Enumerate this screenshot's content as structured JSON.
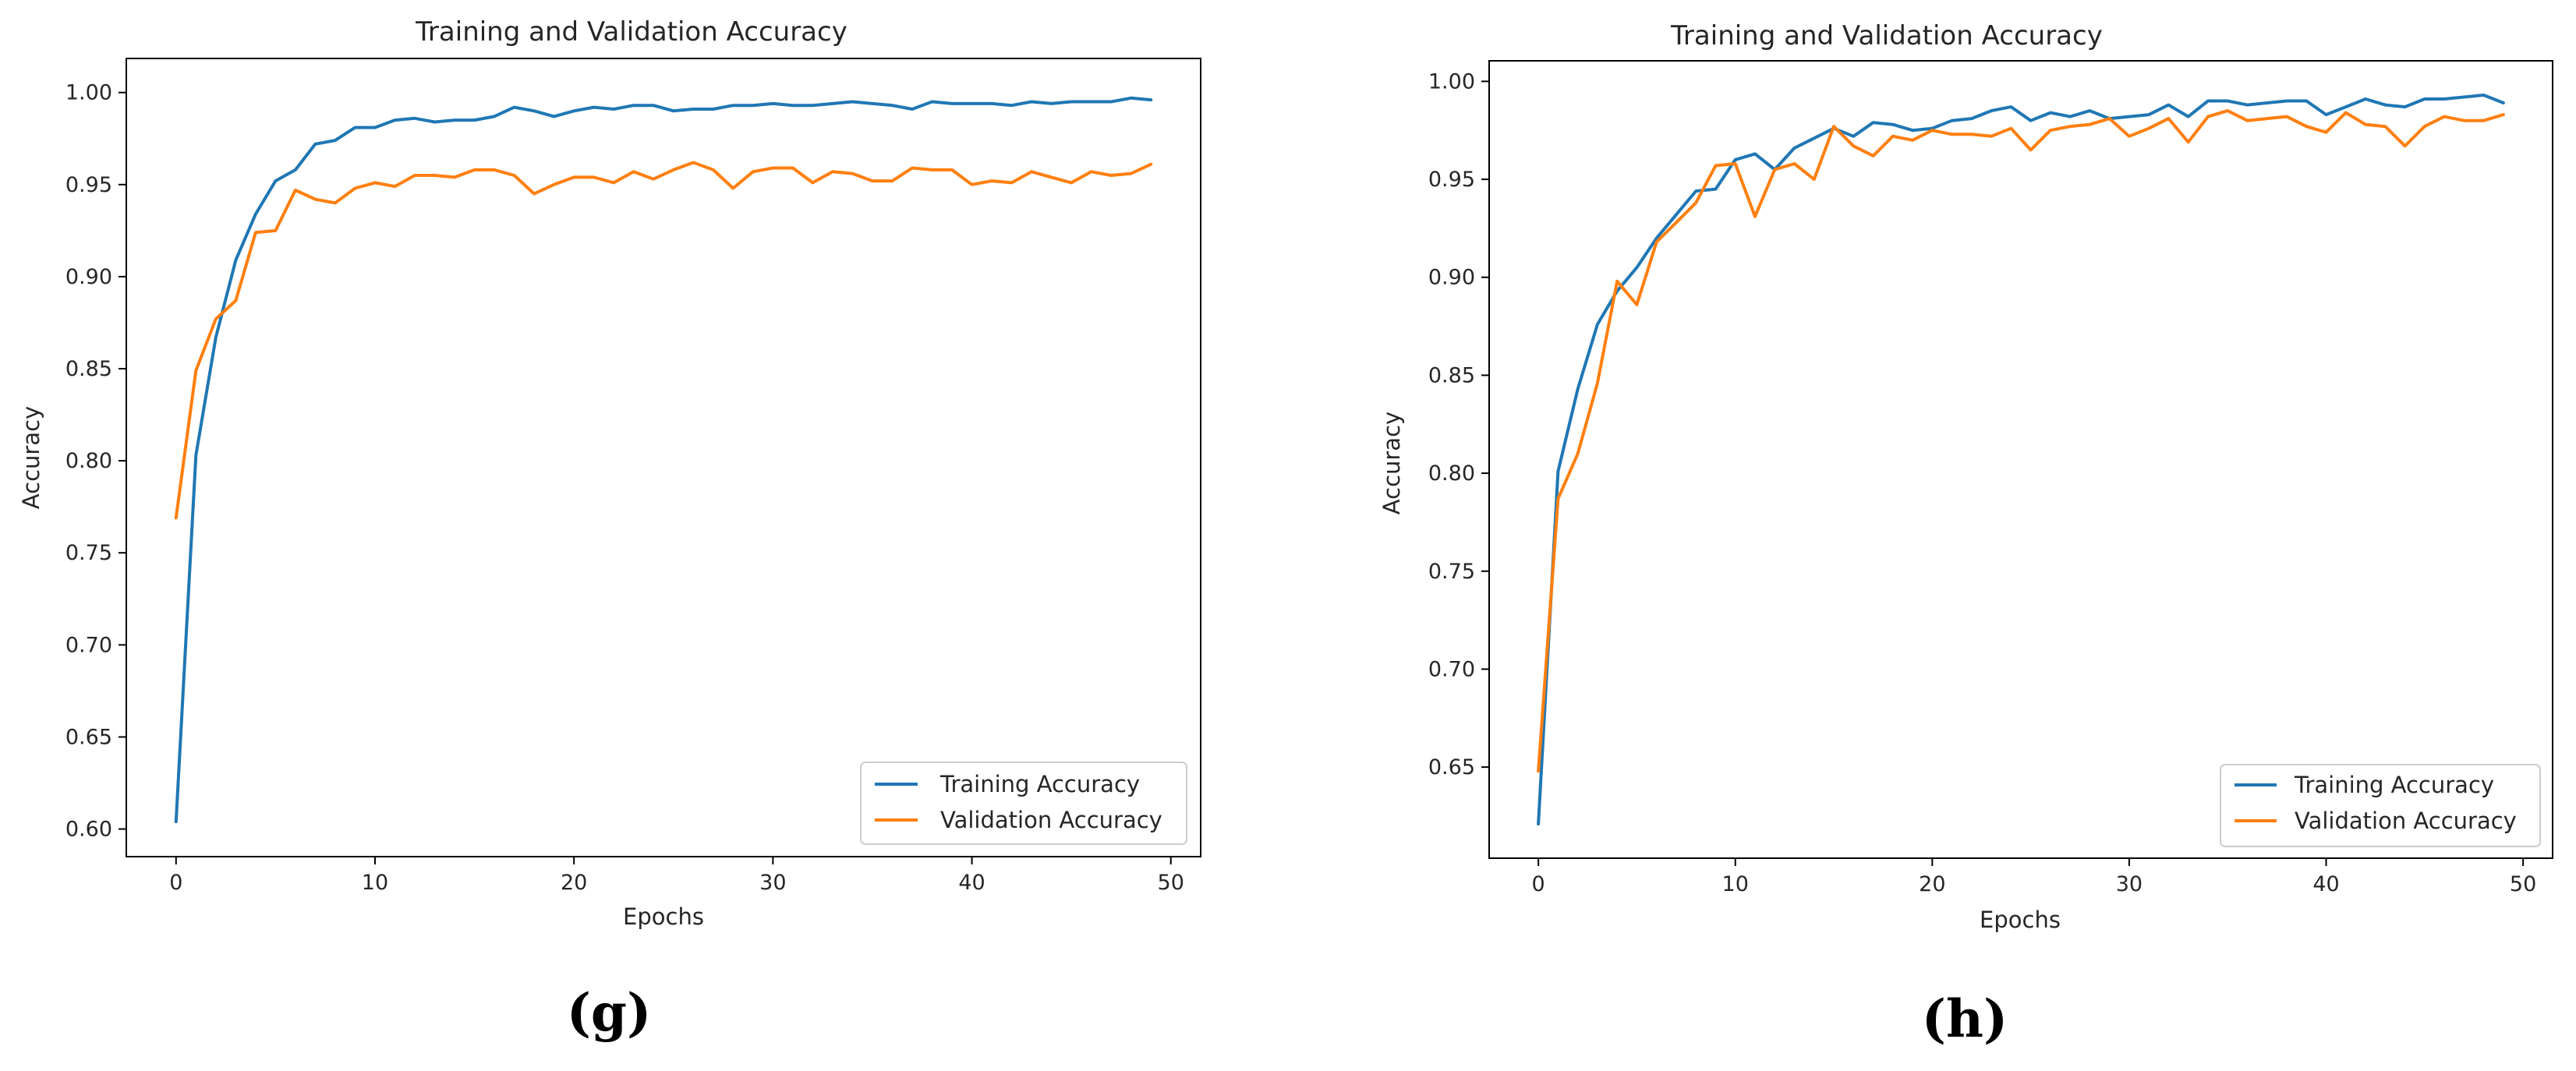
{
  "colors": {
    "training": "#1f77b4",
    "validation": "#ff7f0e",
    "axes": "#000000",
    "text": "#262626"
  },
  "chart_data": [
    {
      "type": "line",
      "panel_label": "(g)",
      "title": "Training and Validation Accuracy",
      "xlabel": "Epochs",
      "ylabel": "Accuracy",
      "xlim": [
        -2.5,
        51.5
      ],
      "ylim": [
        0.585,
        1.0185
      ],
      "xticks": [
        0,
        10,
        20,
        30,
        40,
        50
      ],
      "xtick_labels": [
        "0",
        "10",
        "20",
        "30",
        "40",
        "50"
      ],
      "yticks": [
        0.6,
        0.65,
        0.7,
        0.75,
        0.8,
        0.85,
        0.9,
        0.95,
        1.0
      ],
      "ytick_labels": [
        "0.60",
        "0.65",
        "0.70",
        "0.75",
        "0.80",
        "0.85",
        "0.90",
        "0.95",
        "1.00"
      ],
      "grid": false,
      "legend_position": "lower-right",
      "x": [
        0,
        1,
        2,
        3,
        4,
        5,
        6,
        7,
        8,
        9,
        10,
        11,
        12,
        13,
        14,
        15,
        16,
        17,
        18,
        19,
        20,
        21,
        22,
        23,
        24,
        25,
        26,
        27,
        28,
        29,
        30,
        31,
        32,
        33,
        34,
        35,
        36,
        37,
        38,
        39,
        40,
        41,
        42,
        43,
        44,
        45,
        46,
        47,
        48,
        49
      ],
      "series": [
        {
          "name": "Training Accuracy",
          "values": [
            0.604,
            0.803,
            0.867,
            0.909,
            0.934,
            0.952,
            0.958,
            0.972,
            0.974,
            0.981,
            0.981,
            0.985,
            0.986,
            0.984,
            0.985,
            0.985,
            0.987,
            0.992,
            0.99,
            0.987,
            0.99,
            0.992,
            0.991,
            0.993,
            0.993,
            0.99,
            0.991,
            0.991,
            0.993,
            0.993,
            0.994,
            0.993,
            0.993,
            0.994,
            0.995,
            0.994,
            0.993,
            0.991,
            0.995,
            0.994,
            0.994,
            0.994,
            0.993,
            0.995,
            0.994,
            0.995,
            0.995,
            0.995,
            0.997,
            0.996
          ]
        },
        {
          "name": "Validation Accuracy",
          "values": [
            0.769,
            0.849,
            0.877,
            0.887,
            0.924,
            0.925,
            0.947,
            0.942,
            0.94,
            0.948,
            0.951,
            0.949,
            0.955,
            0.955,
            0.954,
            0.958,
            0.958,
            0.955,
            0.945,
            0.95,
            0.954,
            0.954,
            0.951,
            0.957,
            0.953,
            0.958,
            0.962,
            0.958,
            0.948,
            0.957,
            0.959,
            0.959,
            0.951,
            0.957,
            0.956,
            0.952,
            0.952,
            0.959,
            0.958,
            0.958,
            0.95,
            0.952,
            0.951,
            0.957,
            0.954,
            0.951,
            0.957,
            0.955,
            0.956,
            0.961
          ]
        }
      ]
    },
    {
      "type": "line",
      "panel_label": "(h)",
      "title": "Training and Validation Accuracy",
      "xlabel": "Epochs",
      "ylabel": "Accuracy",
      "xlim": [
        -2.5,
        51.5
      ],
      "ylim": [
        0.6035,
        1.0105
      ],
      "xticks": [
        0,
        10,
        20,
        30,
        40,
        50
      ],
      "xtick_labels": [
        "0",
        "10",
        "20",
        "30",
        "40",
        "50"
      ],
      "yticks": [
        0.65,
        0.7,
        0.75,
        0.8,
        0.85,
        0.9,
        0.95,
        1.0
      ],
      "ytick_labels": [
        "0.65",
        "0.70",
        "0.75",
        "0.80",
        "0.85",
        "0.90",
        "0.95",
        "1.00"
      ],
      "grid": false,
      "legend_position": "lower-right",
      "x": [
        0,
        1,
        2,
        3,
        4,
        5,
        6,
        7,
        8,
        9,
        10,
        11,
        12,
        13,
        14,
        15,
        16,
        17,
        18,
        19,
        20,
        21,
        22,
        23,
        24,
        25,
        26,
        27,
        28,
        29,
        30,
        31,
        32,
        33,
        34,
        35,
        36,
        37,
        38,
        39,
        40,
        41,
        42,
        43,
        44,
        45,
        46,
        47,
        48,
        49
      ],
      "series": [
        {
          "name": "Training Accuracy",
          "values": [
            0.621,
            0.801,
            0.843,
            0.876,
            0.893,
            0.905,
            0.92,
            0.932,
            0.944,
            0.945,
            0.96,
            0.963,
            0.955,
            0.966,
            0.971,
            0.976,
            0.972,
            0.979,
            0.978,
            0.975,
            0.976,
            0.98,
            0.981,
            0.985,
            0.987,
            0.98,
            0.984,
            0.982,
            0.985,
            0.981,
            0.982,
            0.983,
            0.988,
            0.982,
            0.99,
            0.99,
            0.988,
            0.989,
            0.99,
            0.99,
            0.983,
            0.987,
            0.991,
            0.988,
            0.987,
            0.991,
            0.991,
            0.992,
            0.993,
            0.989
          ]
        },
        {
          "name": "Validation Accuracy",
          "values": [
            0.648,
            0.787,
            0.81,
            0.846,
            0.898,
            0.886,
            0.918,
            0.928,
            0.938,
            0.957,
            0.958,
            0.931,
            0.955,
            0.958,
            0.95,
            0.977,
            0.967,
            0.962,
            0.972,
            0.97,
            0.975,
            0.973,
            0.973,
            0.972,
            0.976,
            0.965,
            0.975,
            0.977,
            0.978,
            0.981,
            0.972,
            0.976,
            0.981,
            0.969,
            0.982,
            0.985,
            0.98,
            0.981,
            0.982,
            0.977,
            0.974,
            0.984,
            0.978,
            0.977,
            0.967,
            0.977,
            0.982,
            0.98,
            0.98,
            0.983
          ]
        }
      ]
    }
  ]
}
